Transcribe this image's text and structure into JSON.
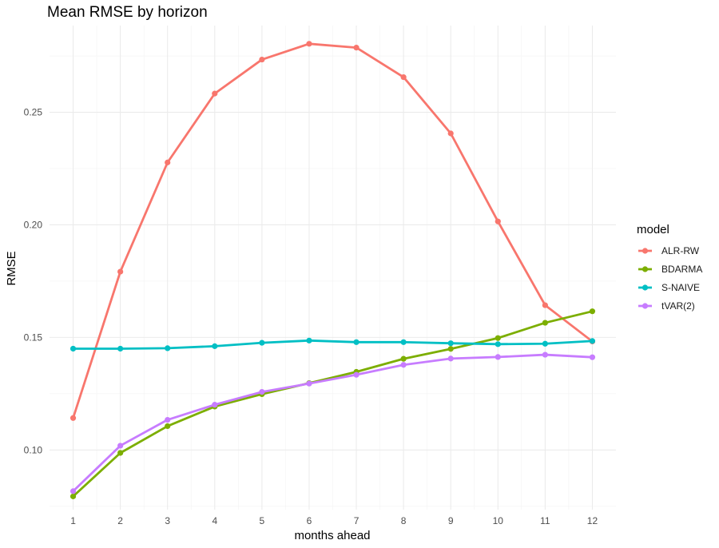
{
  "chart_data": {
    "type": "line",
    "title": "Mean RMSE by horizon",
    "xlabel": "months ahead",
    "ylabel": "RMSE",
    "x": [
      1,
      2,
      3,
      4,
      5,
      6,
      7,
      8,
      9,
      10,
      11,
      12
    ],
    "x_ticks": [
      "1",
      "2",
      "3",
      "4",
      "5",
      "6",
      "7",
      "8",
      "9",
      "10",
      "11",
      "12"
    ],
    "y_ticks": [
      "0.10",
      "0.15",
      "0.20",
      "0.25"
    ],
    "ylim": [
      0.0735,
      0.2885
    ],
    "xlim": [
      0.5,
      12.5
    ],
    "grid": true,
    "legend": {
      "title": "model",
      "position": "right"
    },
    "series": [
      {
        "name": "ALR-RW",
        "color": "#F8766D",
        "values": [
          0.1142,
          0.1792,
          0.2277,
          0.2583,
          0.2734,
          0.2804,
          0.2787,
          0.2656,
          0.2406,
          0.2015,
          0.1643,
          0.1482
        ]
      },
      {
        "name": "BDARMA",
        "color": "#7CAE00",
        "values": [
          0.0794,
          0.0987,
          0.1106,
          0.1193,
          0.1248,
          0.1297,
          0.1347,
          0.1405,
          0.1449,
          0.1497,
          0.1565,
          0.1616
        ]
      },
      {
        "name": "S-NAIVE",
        "color": "#00BFC4",
        "values": [
          0.145,
          0.145,
          0.1452,
          0.1461,
          0.1476,
          0.1486,
          0.1479,
          0.1479,
          0.1474,
          0.147,
          0.1472,
          0.1484
        ]
      },
      {
        "name": "tVAR(2)",
        "color": "#C77CFF",
        "values": [
          0.0817,
          0.1019,
          0.1134,
          0.1201,
          0.1258,
          0.1295,
          0.1334,
          0.1378,
          0.1406,
          0.1413,
          0.1423,
          0.1412
        ]
      }
    ]
  }
}
